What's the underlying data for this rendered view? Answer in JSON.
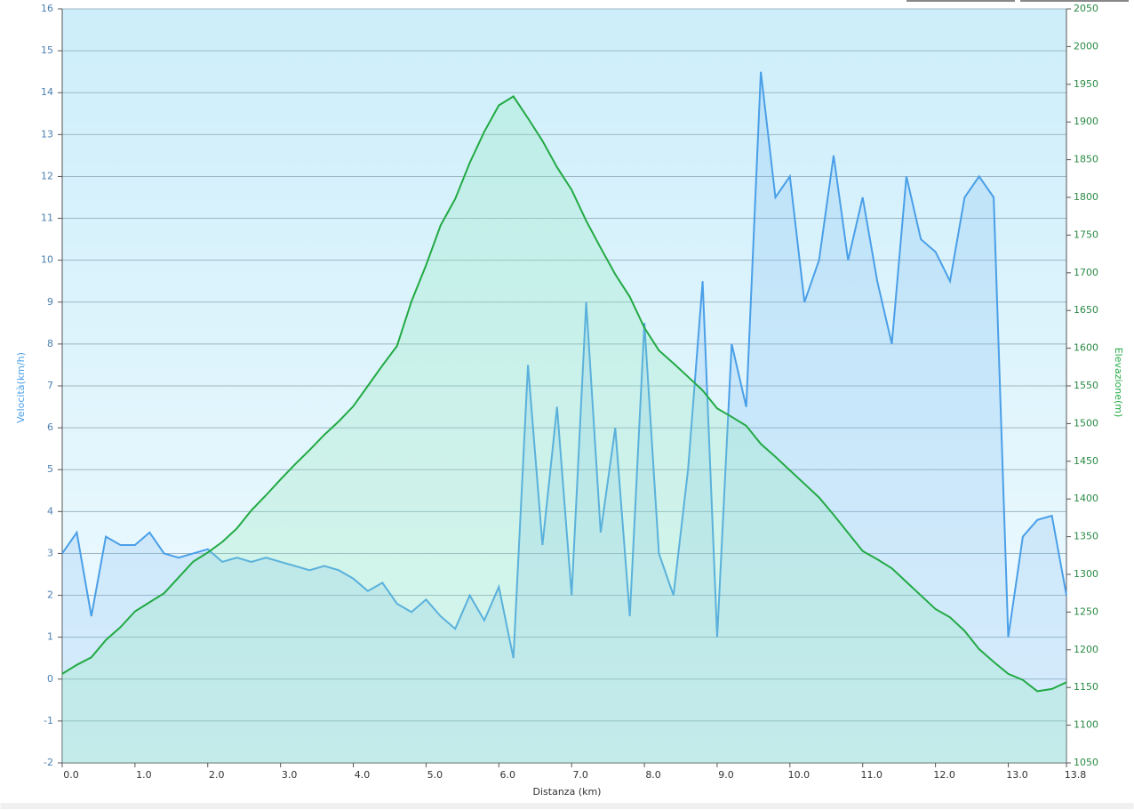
{
  "chart_data": {
    "type": "line",
    "xlabel": "Distanza  (km)",
    "ylabel": "Velocità(km/h)",
    "y2label": "Elevazione(m)",
    "x": [
      0,
      0.2,
      0.4,
      0.6,
      0.8,
      1.0,
      1.2,
      1.4,
      1.6,
      1.8,
      2.0,
      2.2,
      2.4,
      2.6,
      2.8,
      3.0,
      3.2,
      3.4,
      3.6,
      3.8,
      4.0,
      4.2,
      4.4,
      4.6,
      4.8,
      5.0,
      5.2,
      5.4,
      5.6,
      5.8,
      6.0,
      6.2,
      6.4,
      6.6,
      6.8,
      7.0,
      7.2,
      7.4,
      7.6,
      7.8,
      8.0,
      8.2,
      8.4,
      8.6,
      8.8,
      9.0,
      9.2,
      9.4,
      9.6,
      9.8,
      10.0,
      10.2,
      10.4,
      10.6,
      10.8,
      11.0,
      11.2,
      11.4,
      11.6,
      11.8,
      12.0,
      12.2,
      12.4,
      12.6,
      12.8,
      13.0,
      13.2,
      13.4,
      13.6,
      13.8
    ],
    "series": [
      {
        "name": "Velocità",
        "color": "#4a9fe8",
        "fill": "rgba(120,180,240,0.22)",
        "values": [
          3,
          3.5,
          1.5,
          3.4,
          3.2,
          3.2,
          3.5,
          3.0,
          2.9,
          3.0,
          3.1,
          2.8,
          2.9,
          2.8,
          2.9,
          2.8,
          2.7,
          2.6,
          2.7,
          2.6,
          2.4,
          2.1,
          2.3,
          1.8,
          1.6,
          1.9,
          1.5,
          1.2,
          2.0,
          1.4,
          2.2,
          0.5,
          7.5,
          3.2,
          6.5,
          2.0,
          9.0,
          3.5,
          6.0,
          1.5,
          8.5,
          3.0,
          2.0,
          5.0,
          9.5,
          1.0,
          8.0,
          6.5,
          14.5,
          11.5,
          12.0,
          9.0,
          10.0,
          12.5,
          10.0,
          11.5,
          9.5,
          8.0,
          12.0,
          10.5,
          10.2,
          9.5,
          11.5,
          12.0,
          11.5,
          1.0,
          3.4,
          3.8,
          3.9,
          2.0
        ]
      },
      {
        "name": "Elevazione",
        "color": "#22aa44",
        "fill": "rgba(140,230,180,0.25)",
        "axis": "y2",
        "values": [
          1168,
          1180,
          1190,
          1213,
          1230,
          1251,
          1263,
          1275,
          1296,
          1317,
          1329,
          1343,
          1361,
          1385,
          1405,
          1426,
          1446,
          1465,
          1485,
          1503,
          1523,
          1550,
          1577,
          1603,
          1662,
          1710,
          1763,
          1798,
          1846,
          1887,
          1922,
          1934,
          1905,
          1875,
          1840,
          1810,
          1769,
          1733,
          1698,
          1668,
          1627,
          1597,
          1580,
          1562,
          1544,
          1520,
          1509,
          1497,
          1473,
          1456,
          1438,
          1420,
          1402,
          1379,
          1355,
          1331,
          1320,
          1308,
          1290,
          1272,
          1254,
          1243,
          1225,
          1201,
          1184,
          1168,
          1160,
          1145,
          1148,
          1157
        ]
      }
    ],
    "xlim": [
      0,
      13.8
    ],
    "xticks": [
      {
        "value": 0,
        "label": "0.0"
      },
      {
        "value": 1,
        "label": "1.0"
      },
      {
        "value": 2,
        "label": "2.0"
      },
      {
        "value": 3,
        "label": "3.0"
      },
      {
        "value": 4,
        "label": "4.0"
      },
      {
        "value": 5,
        "label": "5.0"
      },
      {
        "value": 6,
        "label": "6.0"
      },
      {
        "value": 7,
        "label": "7.0"
      },
      {
        "value": 8,
        "label": "8.0"
      },
      {
        "value": 9,
        "label": "9.0"
      },
      {
        "value": 10,
        "label": "10.0"
      },
      {
        "value": 11,
        "label": "11.0"
      },
      {
        "value": 12,
        "label": "12.0"
      },
      {
        "value": 13,
        "label": "13.0"
      },
      13.8
    ],
    "ylim": [
      -2,
      16
    ],
    "yticks": [
      -2,
      -1,
      0,
      1,
      2,
      3,
      4,
      5,
      6,
      7,
      8,
      9,
      10,
      11,
      12,
      13,
      14,
      15,
      16
    ],
    "y2lim": [
      1050,
      2050
    ],
    "y2ticks": [
      1050,
      1100,
      1150,
      1200,
      1250,
      1300,
      1350,
      1400,
      1450,
      1500,
      1550,
      1600,
      1650,
      1700,
      1750,
      1800,
      1850,
      1900,
      1950,
      2000,
      2050
    ],
    "grid": true
  }
}
